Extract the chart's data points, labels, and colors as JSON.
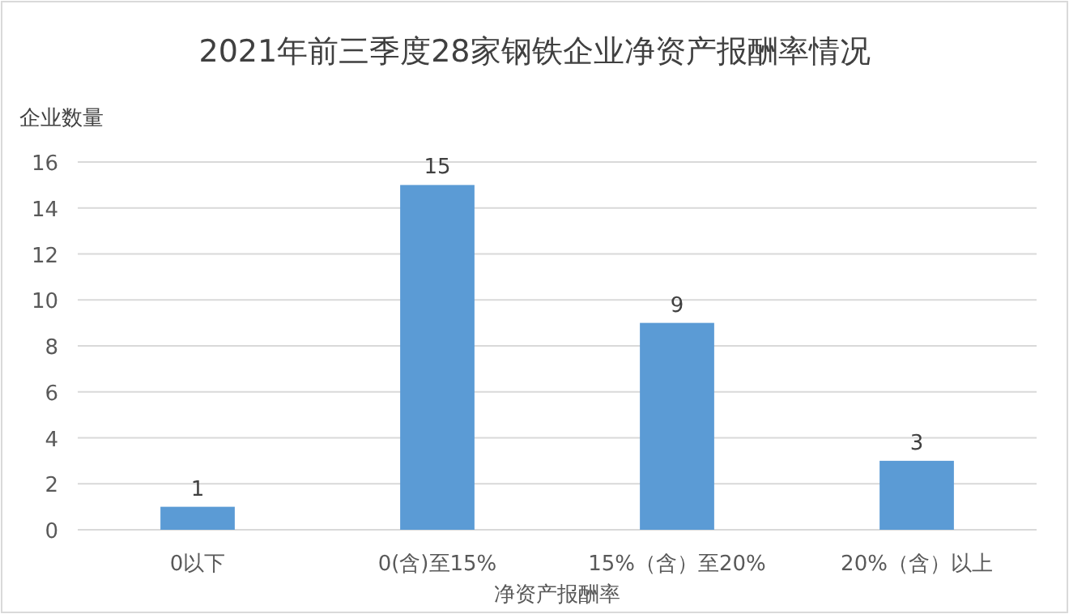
{
  "chart_data": {
    "type": "bar",
    "title": "2021年前三季度28家钢铁企业净资产报酬率情况",
    "xlabel": "净资产报酬率",
    "ylabel": "企业数量",
    "categories": [
      "0以下",
      "0(含)至15%",
      "15%（含）至20%",
      "20%（含）以上"
    ],
    "values": [
      1,
      15,
      9,
      3
    ],
    "color": "#5b9bd5",
    "ylim": [
      0,
      16
    ],
    "yticks": [
      0,
      2,
      4,
      6,
      8,
      10,
      12,
      14,
      16
    ],
    "grid": "y",
    "data_labels": true
  }
}
